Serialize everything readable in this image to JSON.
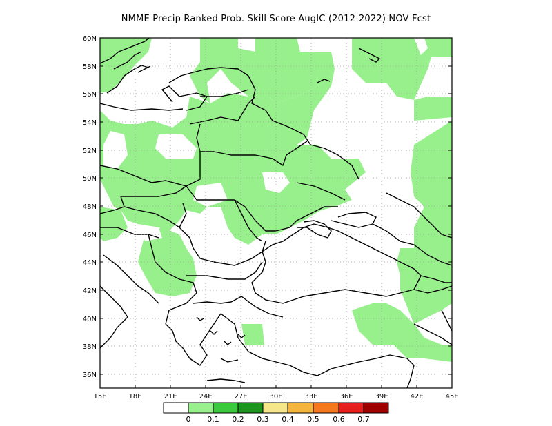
{
  "title": "NMME Precip Ranked Prob. Skill Score AugIC (2012-2022) NOV Fcst",
  "map": {
    "lon_range": [
      15,
      45
    ],
    "lat_range": [
      35,
      60
    ],
    "lat_ticks": [
      "60N",
      "58N",
      "56N",
      "54N",
      "52N",
      "50N",
      "48N",
      "46N",
      "44N",
      "42N",
      "40N",
      "38N",
      "36N"
    ],
    "lon_ticks": [
      "15E",
      "18E",
      "21E",
      "24E",
      "27E",
      "30E",
      "33E",
      "36E",
      "39E",
      "42E",
      "45E"
    ],
    "grid": "dotted"
  },
  "colorbar": {
    "colors": [
      "#ffffff",
      "#98f08c",
      "#3cc83c",
      "#1e961e",
      "#f5e68c",
      "#f5b43c",
      "#f5781e",
      "#e61e1e",
      "#a00000"
    ],
    "labels": [
      "0",
      "0.1",
      "0.2",
      "0.3",
      "0.4",
      "0.5",
      "0.6",
      "0.7"
    ]
  }
}
